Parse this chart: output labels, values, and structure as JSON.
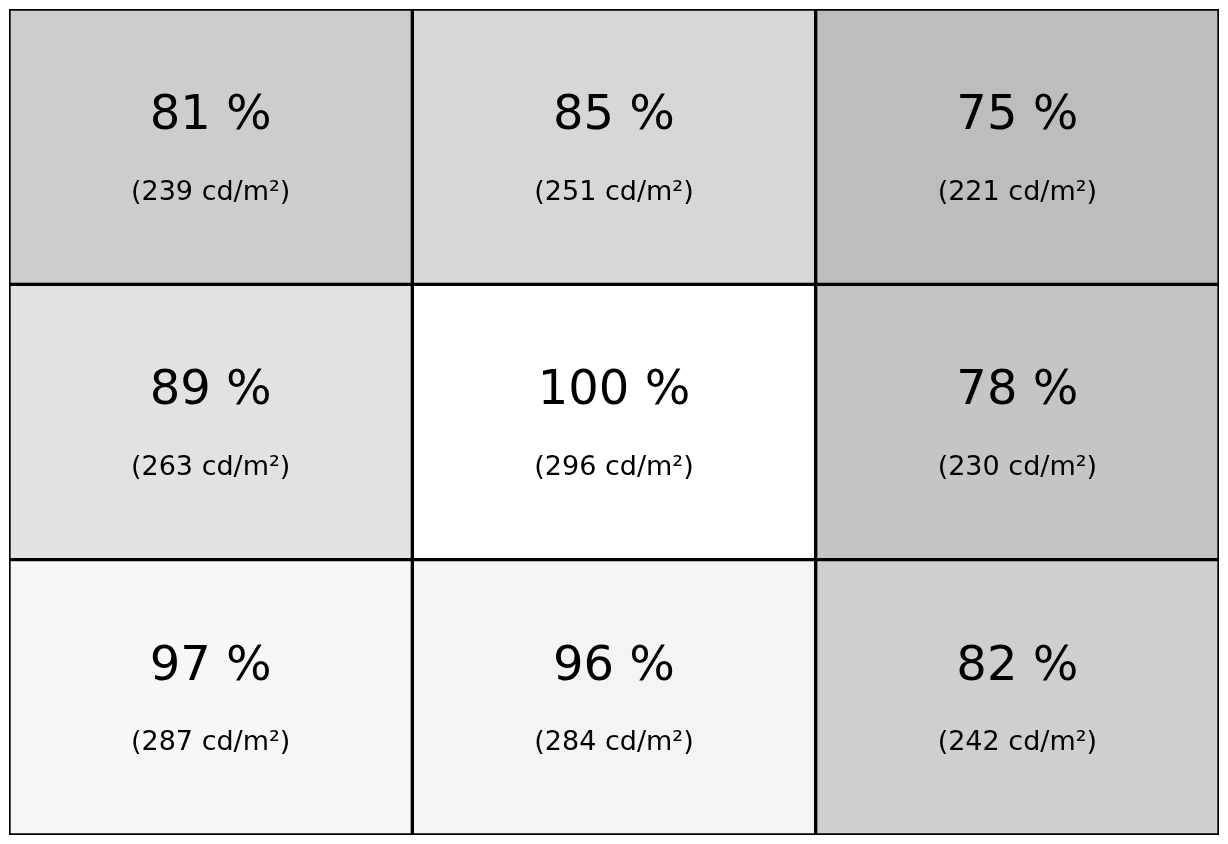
{
  "chart_data": {
    "type": "heatmap",
    "categories": [
      null,
      null,
      null
    ],
    "y_categories": [
      null,
      null,
      null
    ],
    "cells": [
      [
        81,
        85,
        75
      ],
      [
        89,
        100,
        78
      ],
      [
        97,
        96,
        82
      ]
    ],
    "cell_labels": [
      [
        "81 %",
        "85 %",
        "75 %"
      ],
      [
        "89 %",
        "100 %",
        "78 %"
      ],
      [
        "97 %",
        "96 %",
        "82 %"
      ]
    ],
    "annotations": [
      "(239 cd/m²)",
      "(251 cd/m²)",
      "(221 cd/m²)",
      "(263 cd/m²)",
      "(296 cd/m²)",
      "(230 cd/m²)",
      "(287 cd/m²)",
      "(284 cd/m²)",
      "(242 cd/m²)"
    ]
  }
}
